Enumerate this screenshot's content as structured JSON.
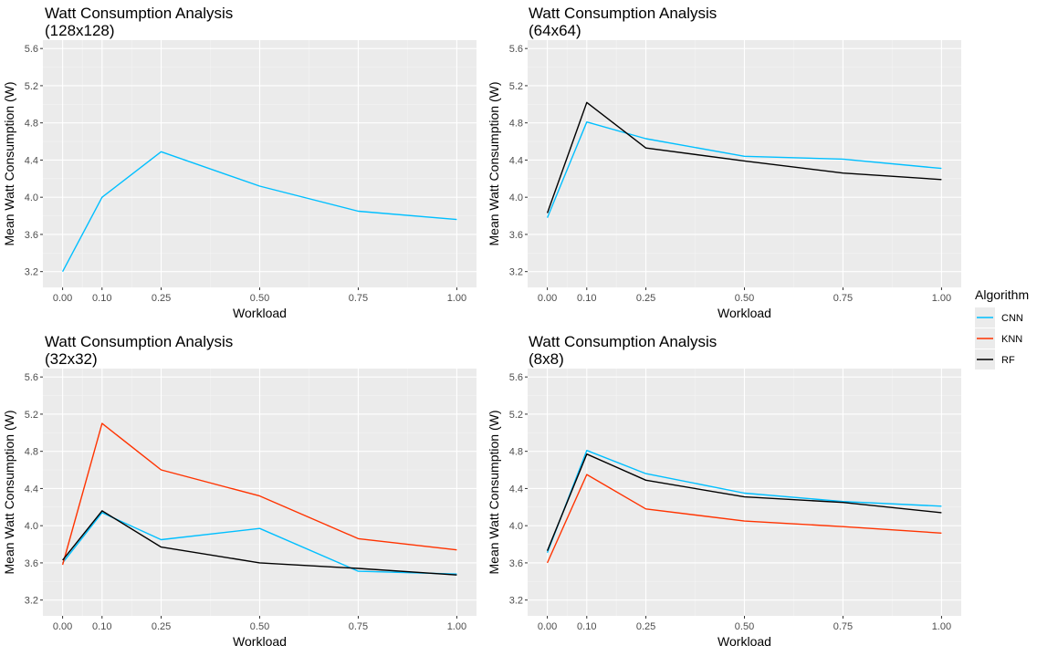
{
  "chart_data": [
    {
      "type": "line",
      "title": "Watt Consumption Analysis",
      "subtitle": "(128x128)",
      "xlabel": "Workload",
      "ylabel": "Mean Watt Consumption (W)",
      "x": [
        0.0,
        0.1,
        0.25,
        0.5,
        0.75,
        1.0
      ],
      "xticks": [
        "0.00",
        "0.10",
        "0.25",
        "0.50",
        "0.75",
        "1.00"
      ],
      "yticks": [
        "3.2",
        "3.6",
        "4.0",
        "4.4",
        "4.8",
        "5.2",
        "5.6"
      ],
      "xlim": [
        -0.05,
        1.05
      ],
      "ylim": [
        3.03,
        5.69
      ],
      "grid": true,
      "series": [
        {
          "name": "CNN",
          "values": [
            3.2,
            4.0,
            4.49,
            4.12,
            3.85,
            3.76
          ]
        }
      ]
    },
    {
      "type": "line",
      "title": "Watt Consumption Analysis",
      "subtitle": "(64x64)",
      "xlabel": "Workload",
      "ylabel": "Mean Watt Consumption (W)",
      "x": [
        0.0,
        0.1,
        0.25,
        0.5,
        0.75,
        1.0
      ],
      "xticks": [
        "0.00",
        "0.10",
        "0.25",
        "0.50",
        "0.75",
        "1.00"
      ],
      "yticks": [
        "3.2",
        "3.6",
        "4.0",
        "4.4",
        "4.8",
        "5.2",
        "5.6"
      ],
      "xlim": [
        -0.05,
        1.05
      ],
      "ylim": [
        3.03,
        5.69
      ],
      "grid": true,
      "series": [
        {
          "name": "CNN",
          "values": [
            3.78,
            4.81,
            4.63,
            4.44,
            4.41,
            4.31
          ]
        },
        {
          "name": "RF",
          "values": [
            3.83,
            5.02,
            4.53,
            4.39,
            4.26,
            4.19
          ]
        }
      ]
    },
    {
      "type": "line",
      "title": "Watt Consumption Analysis",
      "subtitle": "(32x32)",
      "xlabel": "Workload",
      "ylabel": "Mean Watt Consumption (W)",
      "x": [
        0.0,
        0.1,
        0.25,
        0.5,
        0.75,
        1.0
      ],
      "xticks": [
        "0.00",
        "0.10",
        "0.25",
        "0.50",
        "0.75",
        "1.00"
      ],
      "yticks": [
        "3.2",
        "3.6",
        "4.0",
        "4.4",
        "4.8",
        "5.2",
        "5.6"
      ],
      "xlim": [
        -0.05,
        1.05
      ],
      "ylim": [
        3.03,
        5.69
      ],
      "grid": true,
      "series": [
        {
          "name": "CNN",
          "values": [
            3.6,
            4.14,
            3.85,
            3.97,
            3.51,
            3.48
          ]
        },
        {
          "name": "KNN",
          "values": [
            3.58,
            5.1,
            4.6,
            4.32,
            3.86,
            3.74
          ]
        },
        {
          "name": "RF",
          "values": [
            3.63,
            4.16,
            3.77,
            3.6,
            3.54,
            3.47
          ]
        }
      ]
    },
    {
      "type": "line",
      "title": "Watt Consumption Analysis",
      "subtitle": "(8x8)",
      "xlabel": "Workload",
      "ylabel": "Mean Watt Consumption (W)",
      "x": [
        0.0,
        0.1,
        0.25,
        0.5,
        0.75,
        1.0
      ],
      "xticks": [
        "0.00",
        "0.10",
        "0.25",
        "0.50",
        "0.75",
        "1.00"
      ],
      "yticks": [
        "3.2",
        "3.6",
        "4.0",
        "4.4",
        "4.8",
        "5.2",
        "5.6"
      ],
      "xlim": [
        -0.05,
        1.05
      ],
      "ylim": [
        3.03,
        5.69
      ],
      "grid": true,
      "series": [
        {
          "name": "CNN",
          "values": [
            3.71,
            4.81,
            4.56,
            4.35,
            4.26,
            4.21
          ]
        },
        {
          "name": "KNN",
          "values": [
            3.6,
            4.55,
            4.18,
            4.05,
            3.99,
            3.92
          ]
        },
        {
          "name": "RF",
          "values": [
            3.73,
            4.77,
            4.49,
            4.31,
            4.25,
            4.14
          ]
        }
      ]
    }
  ],
  "legend": {
    "title": "Algorithm",
    "placement": "right",
    "items": [
      {
        "name": "CNN",
        "color": "#00BFFF"
      },
      {
        "name": "KNN",
        "color": "#FF3300"
      },
      {
        "name": "RF",
        "color": "#000000"
      }
    ]
  },
  "colors": {
    "panel_background": "#EBEBEB",
    "grid_major": "#FFFFFF",
    "grid_minor": "#F4F4F4"
  }
}
